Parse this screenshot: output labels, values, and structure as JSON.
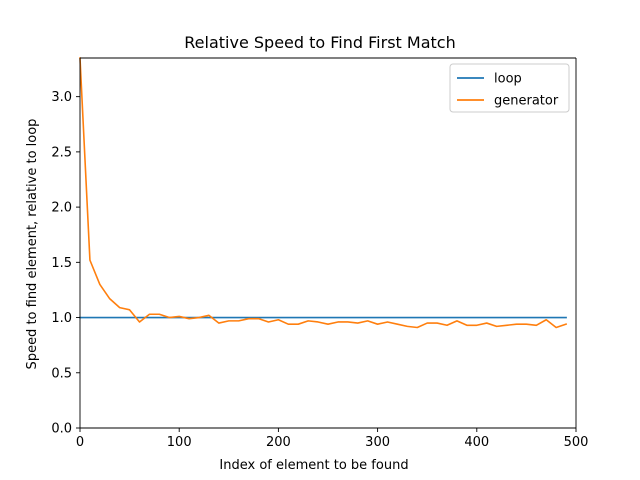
{
  "chart_data": {
    "type": "line",
    "title": "Relative Speed to Find First Match",
    "xlabel": "Index of element to be found",
    "ylabel": "Speed to find element, relative to loop",
    "xlim": [
      0,
      500
    ],
    "ylim": [
      0,
      3.35
    ],
    "xticks": [
      0,
      100,
      200,
      300,
      400,
      500
    ],
    "yticks": [
      0.0,
      0.5,
      1.0,
      1.5,
      2.0,
      2.5,
      3.0
    ],
    "xtick_labels": [
      "0",
      "100",
      "200",
      "300",
      "400",
      "500"
    ],
    "ytick_labels": [
      "0.0",
      "0.5",
      "1.0",
      "1.5",
      "2.0",
      "2.5",
      "3.0"
    ],
    "grid": false,
    "legend_position": "top-right",
    "series": [
      {
        "name": "loop",
        "color": "#1f77b4",
        "x": [
          0,
          490
        ],
        "y": [
          1.0,
          1.0
        ]
      },
      {
        "name": "generator",
        "color": "#ff7f0e",
        "x": [
          0,
          10,
          20,
          30,
          40,
          50,
          60,
          70,
          80,
          90,
          100,
          110,
          120,
          130,
          140,
          150,
          160,
          170,
          180,
          190,
          200,
          210,
          220,
          230,
          240,
          250,
          260,
          270,
          280,
          290,
          300,
          310,
          320,
          330,
          340,
          350,
          360,
          370,
          380,
          390,
          400,
          410,
          420,
          430,
          440,
          450,
          460,
          470,
          480,
          490
        ],
        "y": [
          3.35,
          1.52,
          1.3,
          1.17,
          1.09,
          1.07,
          0.96,
          1.03,
          1.03,
          1.0,
          1.01,
          0.99,
          1.0,
          1.02,
          0.95,
          0.97,
          0.97,
          0.99,
          0.99,
          0.96,
          0.98,
          0.94,
          0.94,
          0.97,
          0.96,
          0.94,
          0.96,
          0.96,
          0.95,
          0.97,
          0.94,
          0.96,
          0.94,
          0.92,
          0.91,
          0.95,
          0.95,
          0.93,
          0.97,
          0.93,
          0.93,
          0.95,
          0.92,
          0.93,
          0.94,
          0.94,
          0.93,
          0.98,
          0.91,
          0.94
        ]
      }
    ]
  }
}
